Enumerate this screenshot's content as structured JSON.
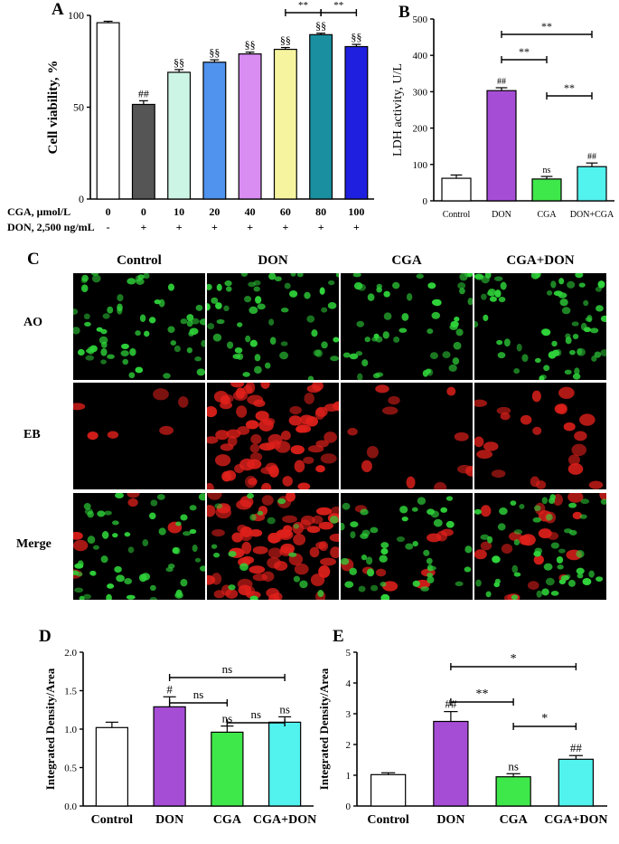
{
  "panels": {
    "a": "A",
    "b": "B",
    "c": "C",
    "d": "D",
    "e": "E"
  },
  "colors": {
    "white": "#ffffff",
    "gray": "#555555",
    "mint": "#ccf5e5",
    "blue": "#4f93ef",
    "lilac": "#d98cf2",
    "yellow": "#f7f4a0",
    "teal": "#1a8fa0",
    "navy": "#1f1fe0",
    "purple": "#a64dd6",
    "green": "#3fe84a",
    "cyan": "#52f2ee",
    "ao_green": "#2fd33a",
    "eb_red": "#e0201b"
  },
  "chart_data": [
    {
      "id": "A",
      "type": "bar",
      "ylabel": "Cell viability, %",
      "ylim": [
        0,
        100
      ],
      "yticks": [
        0,
        50,
        100
      ],
      "row_labels": [
        "CGA, μmol/L",
        "DON, 2,500 ng/mL"
      ],
      "categories": [
        "0",
        "0",
        "10",
        "20",
        "40",
        "60",
        "80",
        "100"
      ],
      "don_row": [
        "-",
        "+",
        "+",
        "+",
        "+",
        "+",
        "+",
        "+"
      ],
      "values": [
        96,
        51.5,
        69,
        74.5,
        79,
        81.5,
        89.5,
        83
      ],
      "errors": [
        0.8,
        2,
        1.5,
        1.3,
        1,
        1,
        0.8,
        1.2
      ],
      "annotations": [
        "",
        "##",
        "§§",
        "§§",
        "§§",
        "§§",
        "§§",
        "§§"
      ],
      "colors": [
        "#ffffff",
        "#555555",
        "#ccf5e5",
        "#4f93ef",
        "#d98cf2",
        "#f7f4a0",
        "#1a8fa0",
        "#1f1fe0"
      ],
      "brackets": [
        {
          "from": 5,
          "to": 6,
          "label": "**"
        },
        {
          "from": 6,
          "to": 7,
          "label": "**"
        }
      ]
    },
    {
      "id": "B",
      "type": "bar",
      "ylabel": "LDH activity, U/L",
      "ylim": [
        0,
        500
      ],
      "yticks": [
        0,
        100,
        200,
        300,
        400,
        500
      ],
      "categories": [
        "Control",
        "DON",
        "CGA",
        "DON+CGA"
      ],
      "values": [
        62,
        303,
        60,
        94
      ],
      "errors": [
        9,
        8,
        7,
        10
      ],
      "annotations": [
        "",
        "##",
        "ns",
        "##"
      ],
      "colors": [
        "#ffffff",
        "#a64dd6",
        "#3fe84a",
        "#52f2ee"
      ],
      "brackets": [
        {
          "from": 1,
          "to": 3,
          "label": "**"
        },
        {
          "from": 1,
          "to": 2,
          "label": "**"
        },
        {
          "from": 2,
          "to": 3,
          "label": "**"
        }
      ]
    },
    {
      "id": "D",
      "type": "bar",
      "ylabel": "Integrated Density/Area",
      "ylim": [
        0,
        2.0
      ],
      "yticks": [
        0,
        0.5,
        1.0,
        1.5,
        2.0
      ],
      "ytick_labels": [
        "0.0",
        "0.5",
        "1.0",
        "1.5",
        "2.0"
      ],
      "categories": [
        "Control",
        "DON",
        "CGA",
        "CGA+DON"
      ],
      "values": [
        1.02,
        1.29,
        0.96,
        1.09
      ],
      "errors": [
        0.07,
        0.13,
        0.08,
        0.07
      ],
      "annotations": [
        "",
        "#",
        "ns",
        "ns"
      ],
      "colors": [
        "#ffffff",
        "#a64dd6",
        "#3fe84a",
        "#52f2ee"
      ],
      "brackets": [
        {
          "from": 1,
          "to": 3,
          "label": "ns"
        },
        {
          "from": 1,
          "to": 2,
          "label": "ns"
        },
        {
          "from": 2,
          "to": 3,
          "label": "ns"
        }
      ]
    },
    {
      "id": "E",
      "type": "bar",
      "ylabel": "Integrated Density/Area",
      "ylim": [
        0,
        5
      ],
      "yticks": [
        0,
        1,
        2,
        3,
        4,
        5
      ],
      "categories": [
        "Control",
        "DON",
        "CGA",
        "CGA+DON"
      ],
      "values": [
        1.02,
        2.75,
        0.95,
        1.52
      ],
      "errors": [
        0.06,
        0.32,
        0.1,
        0.12
      ],
      "annotations": [
        "",
        "##",
        "ns",
        "##"
      ],
      "colors": [
        "#ffffff",
        "#a64dd6",
        "#3fe84a",
        "#52f2ee"
      ],
      "brackets": [
        {
          "from": 1,
          "to": 3,
          "label": "*"
        },
        {
          "from": 1,
          "to": 2,
          "label": "**"
        },
        {
          "from": 2,
          "to": 3,
          "label": "*"
        }
      ]
    }
  ],
  "micrographs": {
    "columns": [
      "Control",
      "DON",
      "CGA",
      "CGA+DON"
    ],
    "rows": [
      "AO",
      "EB",
      "Merge"
    ]
  }
}
